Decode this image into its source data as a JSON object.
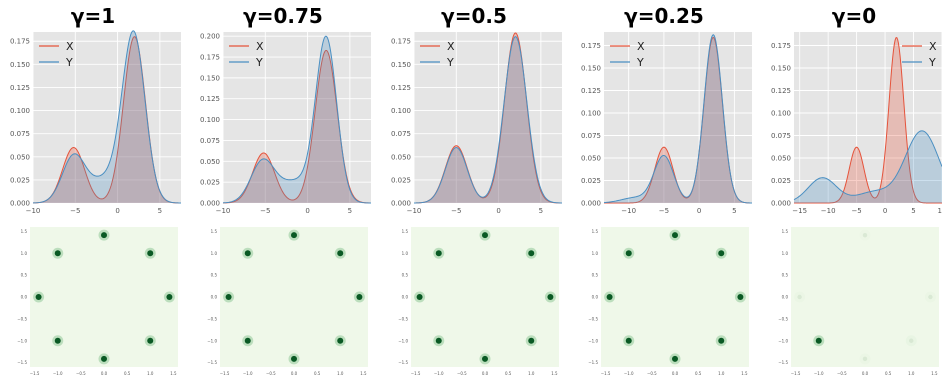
{
  "panels": [
    {
      "title": "γ=1",
      "kde": {
        "type": "area",
        "xlim": [
          -10,
          7.5
        ],
        "ylim": [
          0,
          0.185
        ],
        "xticks": [
          -10,
          -5,
          0,
          5
        ],
        "yticks": [
          "0.000",
          "0.025",
          "0.050",
          "0.075",
          "0.100",
          "0.125",
          "0.150",
          "0.175"
        ],
        "series": [
          {
            "name": "X",
            "color": "#e5533b",
            "components": [
              {
                "mu": -5.2,
                "sigma": 1.3,
                "amp": 0.06
              },
              {
                "mu": 2,
                "sigma": 1.3,
                "amp": 0.18
              }
            ]
          },
          {
            "name": "Y",
            "color": "#4a8fc2",
            "components": [
              {
                "mu": -5.2,
                "sigma": 1.35,
                "amp": 0.05
              },
              {
                "mu": 1.9,
                "sigma": 1.35,
                "amp": 0.182
              },
              {
                "mu": -1.5,
                "sigma": 1.8,
                "amp": 0.025
              }
            ]
          }
        ]
      },
      "samples": {
        "modes": [
          {
            "angle": 90,
            "intensity": 1
          },
          {
            "angle": 45,
            "intensity": 1
          },
          {
            "angle": 0,
            "intensity": 1
          },
          {
            "angle": 315,
            "intensity": 1
          },
          {
            "angle": 270,
            "intensity": 1
          },
          {
            "angle": 225,
            "intensity": 1
          },
          {
            "angle": 180,
            "intensity": 1
          },
          {
            "angle": 135,
            "intensity": 1
          }
        ]
      }
    },
    {
      "title": "γ=0.75",
      "kde": {
        "type": "area",
        "xlim": [
          -10,
          7.5
        ],
        "ylim": [
          0,
          0.205
        ],
        "xticks": [
          -10,
          -5,
          0,
          5
        ],
        "yticks": [
          "0.000",
          "0.025",
          "0.050",
          "0.075",
          "0.100",
          "0.125",
          "0.150",
          "0.175",
          "0.200"
        ],
        "series": [
          {
            "name": "X",
            "color": "#e5533b",
            "components": [
              {
                "mu": -5.2,
                "sigma": 1.3,
                "amp": 0.06
              },
              {
                "mu": 2.2,
                "sigma": 1.3,
                "amp": 0.183
              }
            ]
          },
          {
            "name": "Y",
            "color": "#4a8fc2",
            "components": [
              {
                "mu": -5.3,
                "sigma": 1.4,
                "amp": 0.05
              },
              {
                "mu": 2.2,
                "sigma": 1.25,
                "amp": 0.197
              },
              {
                "mu": -1.5,
                "sigma": 1.8,
                "amp": 0.025
              }
            ]
          }
        ]
      },
      "samples": {
        "modes": [
          {
            "angle": 90,
            "intensity": 1
          },
          {
            "angle": 45,
            "intensity": 1
          },
          {
            "angle": 0,
            "intensity": 1
          },
          {
            "angle": 315,
            "intensity": 1
          },
          {
            "angle": 270,
            "intensity": 1
          },
          {
            "angle": 225,
            "intensity": 1
          },
          {
            "angle": 180,
            "intensity": 1
          },
          {
            "angle": 135,
            "intensity": 1
          }
        ]
      }
    },
    {
      "title": "γ=0.5",
      "kde": {
        "type": "area",
        "xlim": [
          -10,
          7.5
        ],
        "ylim": [
          0,
          0.185
        ],
        "xticks": [
          -10,
          -5,
          0,
          5
        ],
        "yticks": [
          "0.000",
          "0.025",
          "0.050",
          "0.075",
          "0.100",
          "0.125",
          "0.150",
          "0.175"
        ],
        "series": [
          {
            "name": "X",
            "color": "#e5533b",
            "components": [
              {
                "mu": -5,
                "sigma": 1.3,
                "amp": 0.062
              },
              {
                "mu": 2,
                "sigma": 1.3,
                "amp": 0.184
              }
            ]
          },
          {
            "name": "Y",
            "color": "#4a8fc2",
            "components": [
              {
                "mu": -5,
                "sigma": 1.3,
                "amp": 0.06
              },
              {
                "mu": 2,
                "sigma": 1.35,
                "amp": 0.18
              }
            ]
          }
        ]
      },
      "samples": {
        "modes": [
          {
            "angle": 90,
            "intensity": 1
          },
          {
            "angle": 45,
            "intensity": 1
          },
          {
            "angle": 0,
            "intensity": 1
          },
          {
            "angle": 315,
            "intensity": 1
          },
          {
            "angle": 270,
            "intensity": 1
          },
          {
            "angle": 225,
            "intensity": 1
          },
          {
            "angle": 180,
            "intensity": 1
          },
          {
            "angle": 135,
            "intensity": 1
          }
        ]
      }
    },
    {
      "title": "γ=0.25",
      "kde": {
        "type": "area",
        "xlim": [
          -13.5,
          7.5
        ],
        "ylim": [
          0,
          0.19
        ],
        "xticks": [
          -10,
          -5,
          0,
          5
        ],
        "yticks": [
          "0.000",
          "0.025",
          "0.050",
          "0.075",
          "0.100",
          "0.125",
          "0.150",
          "0.175"
        ],
        "series": [
          {
            "name": "X",
            "color": "#e5533b",
            "components": [
              {
                "mu": -5,
                "sigma": 1.3,
                "amp": 0.062
              },
              {
                "mu": 2,
                "sigma": 1.3,
                "amp": 0.184
              }
            ]
          },
          {
            "name": "Y",
            "color": "#4a8fc2",
            "components": [
              {
                "mu": -5,
                "sigma": 1.4,
                "amp": 0.052
              },
              {
                "mu": 2,
                "sigma": 1.3,
                "amp": 0.187
              },
              {
                "mu": -9,
                "sigma": 2,
                "amp": 0.006
              }
            ]
          }
        ]
      },
      "samples": {
        "modes": [
          {
            "angle": 90,
            "intensity": 1
          },
          {
            "angle": 45,
            "intensity": 1
          },
          {
            "angle": 0,
            "intensity": 1
          },
          {
            "angle": 315,
            "intensity": 1
          },
          {
            "angle": 270,
            "intensity": 1
          },
          {
            "angle": 225,
            "intensity": 1
          },
          {
            "angle": 180,
            "intensity": 1
          },
          {
            "angle": 135,
            "intensity": 1
          }
        ]
      }
    },
    {
      "title": "γ=0",
      "kde": {
        "type": "area",
        "xlim": [
          -16,
          10
        ],
        "ylim": [
          0,
          0.19
        ],
        "xticks": [
          -15,
          -10,
          -5,
          0,
          5,
          10
        ],
        "yticks": [
          "0.000",
          "0.025",
          "0.050",
          "0.075",
          "0.100",
          "0.125",
          "0.150",
          "0.175"
        ],
        "series": [
          {
            "name": "X",
            "color": "#e5533b",
            "components": [
              {
                "mu": -5,
                "sigma": 1.3,
                "amp": 0.062
              },
              {
                "mu": 2,
                "sigma": 1.3,
                "amp": 0.184
              }
            ]
          },
          {
            "name": "Y",
            "color": "#4a8fc2",
            "components": [
              {
                "mu": -11,
                "sigma": 2.5,
                "amp": 0.028
              },
              {
                "mu": 6.5,
                "sigma": 3,
                "amp": 0.08
              },
              {
                "mu": -2,
                "sigma": 3,
                "amp": 0.012
              }
            ]
          }
        ]
      },
      "samples": {
        "modes": [
          {
            "angle": 225,
            "intensity": 1
          },
          {
            "angle": 315,
            "intensity": 0.12
          },
          {
            "angle": 0,
            "intensity": 0.08
          },
          {
            "angle": 180,
            "intensity": 0.08
          },
          {
            "angle": 270,
            "intensity": 0.08
          },
          {
            "angle": 90,
            "intensity": 0.06
          }
        ]
      }
    }
  ],
  "scatter_tick_labels": {
    "y": [
      "1.5",
      "1.0",
      "0.5",
      "0.0",
      "−0.5",
      "−1.0",
      "−1.5"
    ],
    "x": [
      "−1.5",
      "−1.0",
      "−0.5",
      "0.0",
      "0.5",
      "1.0",
      "1.5"
    ]
  }
}
